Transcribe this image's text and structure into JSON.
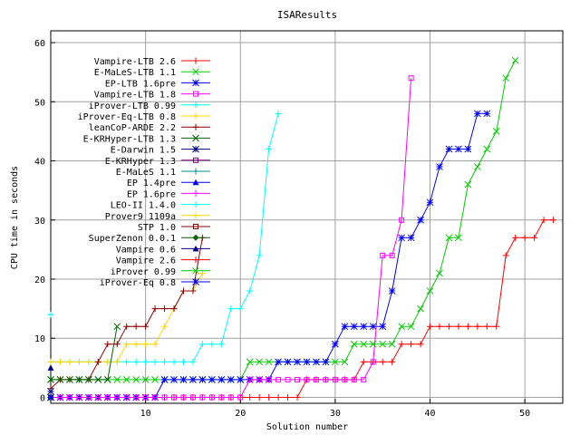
{
  "chart_data": {
    "type": "line",
    "title": "ISAResults",
    "xlabel": "Solution number",
    "ylabel": "CPU time in seconds",
    "xlim": [
      0,
      54
    ],
    "ylim": [
      -1,
      62
    ],
    "xticks": [
      10,
      20,
      30,
      40,
      50
    ],
    "yticks": [
      0,
      10,
      20,
      30,
      40,
      50,
      60
    ],
    "grid": true,
    "legend_position": "top-left",
    "series": [
      {
        "name": "Vampire-LTB 2.6",
        "color": "#ff0000",
        "marker": "+",
        "values": [
          [
            0,
            0
          ],
          [
            1,
            0
          ],
          [
            2,
            0
          ],
          [
            3,
            0
          ],
          [
            4,
            0
          ],
          [
            5,
            0
          ],
          [
            6,
            0
          ],
          [
            7,
            0
          ],
          [
            8,
            0
          ],
          [
            9,
            0
          ],
          [
            10,
            0
          ],
          [
            11,
            0
          ],
          [
            12,
            0
          ],
          [
            13,
            0
          ],
          [
            14,
            0
          ],
          [
            15,
            0
          ],
          [
            16,
            0
          ],
          [
            17,
            0
          ],
          [
            18,
            0
          ],
          [
            19,
            0
          ],
          [
            20,
            0
          ],
          [
            21,
            0
          ],
          [
            22,
            0
          ],
          [
            23,
            0
          ],
          [
            24,
            0
          ],
          [
            25,
            0
          ],
          [
            26,
            0
          ],
          [
            27,
            3
          ],
          [
            28,
            3
          ],
          [
            29,
            3
          ],
          [
            30,
            3
          ],
          [
            31,
            3
          ],
          [
            32,
            3
          ],
          [
            33,
            6
          ],
          [
            34,
            6
          ],
          [
            35,
            6
          ],
          [
            36,
            6
          ],
          [
            37,
            9
          ],
          [
            38,
            9
          ],
          [
            39,
            9
          ],
          [
            40,
            12
          ],
          [
            41,
            12
          ],
          [
            42,
            12
          ],
          [
            43,
            12
          ],
          [
            44,
            12
          ],
          [
            45,
            12
          ],
          [
            46,
            12
          ],
          [
            47,
            12
          ],
          [
            48,
            24
          ],
          [
            49,
            27
          ],
          [
            50,
            27
          ],
          [
            51,
            27
          ],
          [
            52,
            30
          ],
          [
            53,
            30
          ]
        ]
      },
      {
        "name": "E-MaLeS-LTB 1.1",
        "color": "#00cc00",
        "marker": "x",
        "values": [
          [
            0,
            3
          ],
          [
            1,
            3
          ],
          [
            2,
            3
          ],
          [
            3,
            3
          ],
          [
            4,
            3
          ],
          [
            5,
            3
          ],
          [
            6,
            3
          ],
          [
            7,
            3
          ],
          [
            8,
            3
          ],
          [
            9,
            3
          ],
          [
            10,
            3
          ],
          [
            11,
            3
          ],
          [
            12,
            3
          ],
          [
            13,
            3
          ],
          [
            14,
            3
          ],
          [
            15,
            3
          ],
          [
            16,
            3
          ],
          [
            17,
            3
          ],
          [
            18,
            3
          ],
          [
            19,
            3
          ],
          [
            20,
            3
          ],
          [
            21,
            6
          ],
          [
            22,
            6
          ],
          [
            23,
            6
          ],
          [
            24,
            6
          ],
          [
            25,
            6
          ],
          [
            26,
            6
          ],
          [
            27,
            6
          ],
          [
            28,
            6
          ],
          [
            29,
            6
          ],
          [
            30,
            6
          ],
          [
            31,
            6
          ],
          [
            32,
            9
          ],
          [
            33,
            9
          ],
          [
            34,
            9
          ],
          [
            35,
            9
          ],
          [
            36,
            9
          ],
          [
            37,
            12
          ],
          [
            38,
            12
          ],
          [
            39,
            15
          ],
          [
            40,
            18
          ],
          [
            41,
            21
          ],
          [
            42,
            27
          ],
          [
            43,
            27
          ],
          [
            44,
            36
          ],
          [
            45,
            39
          ],
          [
            46,
            42
          ],
          [
            47,
            45
          ],
          [
            48,
            54
          ],
          [
            49,
            57
          ]
        ]
      },
      {
        "name": "EP-LTB 1.6pre",
        "color": "#0000ff",
        "marker": "*",
        "values": [
          [
            0,
            0
          ],
          [
            1,
            0
          ],
          [
            2,
            0
          ],
          [
            3,
            0
          ],
          [
            4,
            0
          ],
          [
            5,
            0
          ],
          [
            6,
            0
          ],
          [
            7,
            0
          ],
          [
            8,
            0
          ],
          [
            9,
            0
          ],
          [
            10,
            0
          ],
          [
            11,
            0
          ],
          [
            12,
            3
          ],
          [
            13,
            3
          ],
          [
            14,
            3
          ],
          [
            15,
            3
          ],
          [
            16,
            3
          ],
          [
            17,
            3
          ],
          [
            18,
            3
          ],
          [
            19,
            3
          ],
          [
            20,
            3
          ],
          [
            21,
            3
          ],
          [
            22,
            3
          ],
          [
            23,
            3
          ],
          [
            24,
            6
          ],
          [
            25,
            6
          ],
          [
            26,
            6
          ],
          [
            27,
            6
          ],
          [
            28,
            6
          ],
          [
            29,
            6
          ],
          [
            30,
            9
          ],
          [
            31,
            12
          ],
          [
            32,
            12
          ],
          [
            33,
            12
          ],
          [
            34,
            12
          ],
          [
            35,
            12
          ],
          [
            36,
            18
          ],
          [
            37,
            27
          ],
          [
            38,
            27
          ],
          [
            39,
            30
          ],
          [
            40,
            33
          ],
          [
            41,
            39
          ],
          [
            42,
            42
          ],
          [
            43,
            42
          ],
          [
            44,
            42
          ],
          [
            45,
            48
          ],
          [
            46,
            48
          ]
        ]
      },
      {
        "name": "Vampire-LTB 1.8",
        "color": "#ff00ff",
        "marker": "□",
        "values": [
          [
            0,
            0
          ],
          [
            1,
            0
          ],
          [
            2,
            0
          ],
          [
            3,
            0
          ],
          [
            4,
            0
          ],
          [
            5,
            0
          ],
          [
            6,
            0
          ],
          [
            7,
            0
          ],
          [
            8,
            0
          ],
          [
            9,
            0
          ],
          [
            10,
            0
          ],
          [
            11,
            0
          ],
          [
            12,
            0
          ],
          [
            13,
            0
          ],
          [
            14,
            0
          ],
          [
            15,
            0
          ],
          [
            16,
            0
          ],
          [
            17,
            0
          ],
          [
            18,
            0
          ],
          [
            19,
            0
          ],
          [
            20,
            0
          ],
          [
            21,
            3
          ],
          [
            22,
            3
          ],
          [
            23,
            3
          ],
          [
            24,
            3
          ],
          [
            25,
            3
          ],
          [
            26,
            3
          ],
          [
            27,
            3
          ],
          [
            28,
            3
          ],
          [
            29,
            3
          ],
          [
            30,
            3
          ],
          [
            31,
            3
          ],
          [
            32,
            3
          ],
          [
            33,
            3
          ],
          [
            34,
            6
          ],
          [
            35,
            24
          ],
          [
            36,
            24
          ],
          [
            37,
            30
          ],
          [
            38,
            54
          ]
        ]
      },
      {
        "name": "iProver-LTB 0.99",
        "color": "#00ffff",
        "marker": "+",
        "values": [
          [
            0,
            6
          ],
          [
            1,
            6
          ],
          [
            2,
            6
          ],
          [
            3,
            6
          ],
          [
            4,
            6
          ],
          [
            5,
            6
          ],
          [
            6,
            6
          ],
          [
            7,
            6
          ],
          [
            8,
            6
          ],
          [
            9,
            6
          ],
          [
            10,
            6
          ],
          [
            11,
            6
          ],
          [
            12,
            6
          ],
          [
            13,
            6
          ],
          [
            14,
            6
          ],
          [
            15,
            6
          ],
          [
            16,
            9
          ],
          [
            17,
            9
          ],
          [
            18,
            9
          ],
          [
            19,
            15
          ],
          [
            20,
            15
          ],
          [
            21,
            18
          ],
          [
            22,
            24
          ],
          [
            23,
            42
          ],
          [
            24,
            48
          ]
        ]
      },
      {
        "name": "iProver-Eq-LTB 0.8",
        "color": "#ffd700",
        "marker": "+",
        "values": [
          [
            0,
            6
          ],
          [
            1,
            6
          ],
          [
            2,
            6
          ],
          [
            3,
            6
          ],
          [
            4,
            6
          ],
          [
            5,
            6
          ],
          [
            6,
            6
          ],
          [
            7,
            6
          ],
          [
            8,
            9
          ],
          [
            9,
            9
          ],
          [
            10,
            9
          ],
          [
            11,
            9
          ],
          [
            12,
            12
          ],
          [
            13,
            15
          ],
          [
            14,
            18
          ],
          [
            15,
            18
          ],
          [
            16,
            21
          ]
        ]
      },
      {
        "name": "leanCoP-ARDE 2.2",
        "color": "#8b0000",
        "marker": "+",
        "values": [
          [
            0,
            1.5
          ],
          [
            1,
            3
          ],
          [
            2,
            3
          ],
          [
            3,
            3
          ],
          [
            4,
            3
          ],
          [
            5,
            6
          ],
          [
            6,
            9
          ],
          [
            7,
            9
          ],
          [
            8,
            12
          ],
          [
            9,
            12
          ],
          [
            10,
            12
          ],
          [
            11,
            15
          ],
          [
            12,
            15
          ],
          [
            13,
            15
          ],
          [
            14,
            18
          ],
          [
            15,
            18
          ],
          [
            16,
            27
          ]
        ]
      },
      {
        "name": "E-KRHyper-LTB 1.3",
        "color": "#006400",
        "marker": "x",
        "values": [
          [
            0,
            3
          ],
          [
            1,
            3
          ],
          [
            2,
            3
          ],
          [
            3,
            3
          ],
          [
            4,
            3
          ],
          [
            5,
            3
          ],
          [
            6,
            3
          ],
          [
            7,
            12
          ]
        ]
      },
      {
        "name": "E-Darwin 1.5",
        "color": "#000080",
        "marker": "*",
        "values": [
          [
            0,
            1
          ]
        ]
      },
      {
        "name": "E-KRHyper 1.3",
        "color": "#800080",
        "marker": "□",
        "values": [
          [
            0,
            0
          ]
        ]
      },
      {
        "name": "E-MaLeS 1.1",
        "color": "#008b8b",
        "marker": "+",
        "values": [
          [
            0,
            14
          ]
        ]
      },
      {
        "name": "EP 1.4pre",
        "color": "#0000ff",
        "marker": "▲",
        "values": [
          [
            0,
            0
          ]
        ]
      },
      {
        "name": "EP 1.6pre",
        "color": "#ff00ff",
        "marker": "+",
        "values": [
          [
            0,
            0
          ]
        ]
      },
      {
        "name": "LEO-II 1.4.0",
        "color": "#00ffff",
        "marker": "+",
        "values": [
          [
            0,
            14
          ]
        ]
      },
      {
        "name": "Prover9 1109a",
        "color": "#ffd700",
        "marker": "+",
        "values": [
          [
            0,
            0
          ]
        ]
      },
      {
        "name": "STP 1.0",
        "color": "#8b0000",
        "marker": "□",
        "values": [
          [
            0,
            0
          ]
        ]
      },
      {
        "name": "SuperZenon 0.0.1",
        "color": "#006400",
        "marker": "◆",
        "values": [
          [
            0,
            0
          ]
        ]
      },
      {
        "name": "Vampire 0.6",
        "color": "#000080",
        "marker": "▲",
        "values": [
          [
            0,
            5
          ]
        ]
      },
      {
        "name": "Vampire 2.6",
        "color": "#ff0000",
        "marker": "+",
        "values": [
          [
            0,
            0
          ]
        ]
      },
      {
        "name": "iProver 0.99",
        "color": "#00cc00",
        "marker": "x",
        "values": [
          [
            0,
            0
          ]
        ]
      },
      {
        "name": "iProver-Eq 0.8",
        "color": "#0000ff",
        "marker": "*",
        "values": [
          [
            0,
            0
          ]
        ]
      }
    ]
  }
}
